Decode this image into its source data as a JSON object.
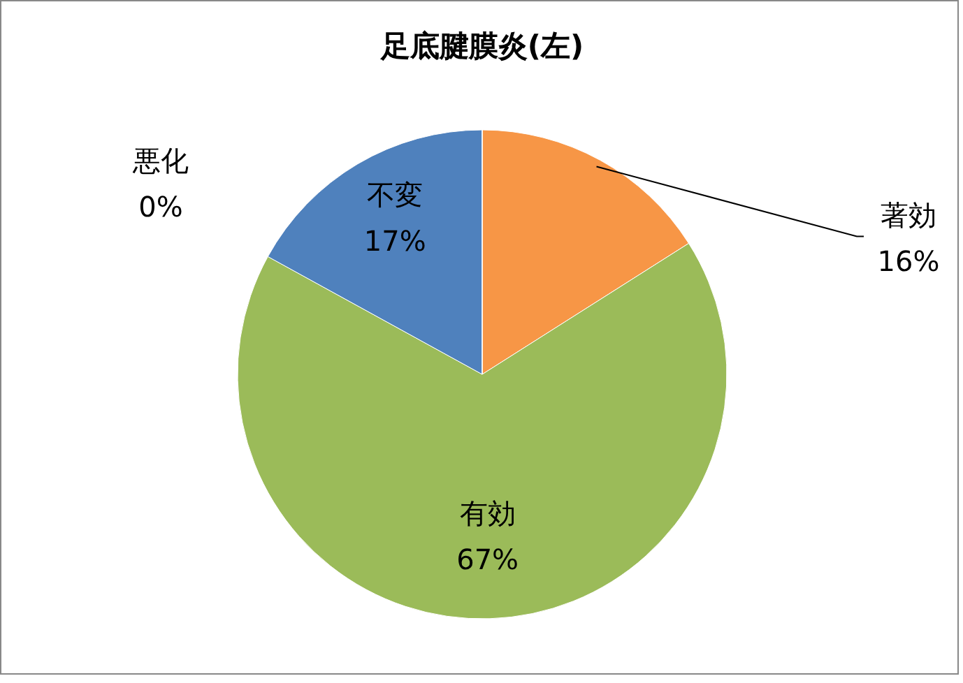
{
  "chart_data": {
    "type": "pie",
    "title": "足底腱膜炎(左)",
    "categories": [
      "著効",
      "有効",
      "不変",
      "悪化"
    ],
    "values": [
      16,
      67,
      17,
      0
    ],
    "value_labels": [
      "16%",
      "67%",
      "17%",
      "0%"
    ],
    "colors": [
      "#f79646",
      "#9bbb59",
      "#4f81bd",
      "#8064a2"
    ]
  }
}
